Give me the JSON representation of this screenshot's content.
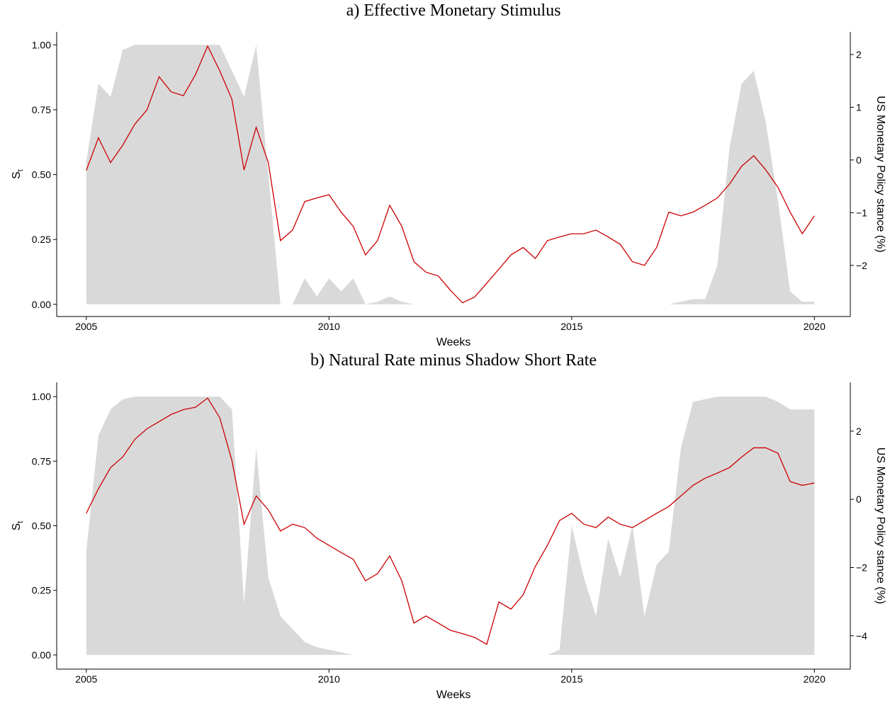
{
  "chart_data": [
    {
      "type": "line",
      "title": "a) Effective Monetary Stimulus",
      "x_label": "Weeks",
      "y_label": "S",
      "y_label_sub": "t",
      "y2_label": "US Monetary Policy stance (%)",
      "x": [
        2005,
        2005.25,
        2005.5,
        2005.75,
        2006,
        2006.25,
        2006.5,
        2006.75,
        2007,
        2007.25,
        2007.5,
        2007.75,
        2008,
        2008.25,
        2008.5,
        2008.75,
        2009,
        2009.25,
        2009.5,
        2009.75,
        2010,
        2010.25,
        2010.5,
        2010.75,
        2011,
        2011.25,
        2011.5,
        2011.75,
        2012,
        2012.25,
        2012.5,
        2012.75,
        2013,
        2013.25,
        2013.5,
        2013.75,
        2014,
        2014.25,
        2014.5,
        2014.75,
        2015,
        2015.25,
        2015.5,
        2015.75,
        2016,
        2016.25,
        2016.5,
        2016.75,
        2017,
        2017.25,
        2017.5,
        2017.75,
        2018,
        2018.25,
        2018.5,
        2018.75,
        2019,
        2019.25,
        2019.5,
        2019.75,
        2020
      ],
      "series": [
        {
          "style": "area",
          "color": "#d9d9d9",
          "values": [
            0.55,
            0.85,
            0.8,
            0.98,
            1,
            1,
            1,
            1,
            1,
            1,
            1,
            1,
            0.9,
            0.8,
            1.0,
            0.5,
            0,
            0,
            0.1,
            0.03,
            0.1,
            0.05,
            0.1,
            0,
            0.01,
            0.03,
            0.01,
            0,
            0,
            0,
            0,
            0,
            0,
            0,
            0,
            0,
            0,
            0,
            0,
            0,
            0,
            0,
            0,
            0,
            0,
            0,
            0,
            0,
            0,
            0.01,
            0.02,
            0.02,
            0.15,
            0.6,
            0.85,
            0.9,
            0.7,
            0.4,
            0.05,
            0.01,
            0.01
          ]
        },
        {
          "style": "line",
          "axis": "y2",
          "color": "#cc0000",
          "values": [
            -0.2,
            0.42,
            -0.05,
            0.28,
            0.68,
            0.95,
            1.58,
            1.29,
            1.22,
            1.62,
            2.16,
            1.69,
            1.15,
            -0.19,
            0.62,
            -0.05,
            -1.53,
            -1.33,
            -0.79,
            -0.72,
            -0.66,
            -0.99,
            -1.26,
            -1.8,
            -1.53,
            -0.86,
            -1.26,
            -1.93,
            -2.13,
            -2.2,
            -2.47,
            -2.71,
            -2.6,
            -2.34,
            -2.07,
            -1.8,
            -1.66,
            -1.87,
            -1.53,
            -1.46,
            -1.4,
            -1.4,
            -1.33,
            -1.46,
            -1.6,
            -1.93,
            -2.0,
            -1.66,
            -0.99,
            -1.06,
            -0.99,
            -0.86,
            -0.72,
            -0.46,
            -0.12,
            0.08,
            -0.19,
            -0.52,
            -0.99,
            -1.4,
            -1.06
          ]
        }
      ],
      "xlim": [
        2004.39,
        2020.74
      ],
      "xticks": [
        2005,
        2010,
        2015,
        2020
      ],
      "ylim": [
        -0.047,
        1.05
      ],
      "yticks": [
        {
          "value": 0,
          "label": "0.00"
        },
        {
          "value": 0.25,
          "label": "0.25"
        },
        {
          "value": 0.5,
          "label": "0.50"
        },
        {
          "value": 0.75,
          "label": "0.75"
        },
        {
          "value": 1,
          "label": "1.00"
        }
      ],
      "y2lim": [
        -2.97,
        2.43
      ],
      "y2ticks": [
        {
          "value": -2,
          "label": "−2"
        },
        {
          "value": -1,
          "label": "−1"
        },
        0,
        1,
        2
      ]
    },
    {
      "type": "line",
      "title": "b) Natural Rate minus Shadow Short Rate",
      "x_label": "Weeks",
      "y_label": "S",
      "y_label_sub": "t",
      "y2_label": "US Monetary Policy stance (%)",
      "x": [
        2005,
        2005.25,
        2005.5,
        2005.75,
        2006,
        2006.25,
        2006.5,
        2006.75,
        2007,
        2007.25,
        2007.5,
        2007.75,
        2008,
        2008.25,
        2008.5,
        2008.75,
        2009,
        2009.25,
        2009.5,
        2009.75,
        2010,
        2010.25,
        2010.5,
        2010.75,
        2011,
        2011.25,
        2011.5,
        2011.75,
        2012,
        2012.25,
        2012.5,
        2012.75,
        2013,
        2013.25,
        2013.5,
        2013.75,
        2014,
        2014.25,
        2014.5,
        2014.75,
        2015,
        2015.25,
        2015.5,
        2015.75,
        2016,
        2016.25,
        2016.5,
        2016.75,
        2017,
        2017.25,
        2017.5,
        2017.75,
        2018,
        2018.25,
        2018.5,
        2018.75,
        2019,
        2019.25,
        2019.5,
        2019.75,
        2020
      ],
      "series": [
        {
          "style": "area",
          "color": "#d9d9d9",
          "values": [
            0.4,
            0.85,
            0.95,
            0.99,
            1,
            1,
            1,
            1,
            1,
            1,
            1,
            1,
            0.95,
            0.2,
            0.8,
            0.3,
            0.15,
            0.1,
            0.05,
            0.03,
            0.02,
            0.01,
            0,
            0,
            0,
            0,
            0,
            0,
            0,
            0,
            0,
            0,
            0,
            0,
            0,
            0,
            0,
            0,
            0,
            0.02,
            0.5,
            0.3,
            0.15,
            0.45,
            0.3,
            0.5,
            0.15,
            0.35,
            0.4,
            0.8,
            0.98,
            0.99,
            1,
            1,
            1,
            1,
            1,
            0.98,
            0.95,
            0.95,
            0.95
          ]
        },
        {
          "style": "line",
          "axis": "y2",
          "color": "#cc0000",
          "values": [
            -0.41,
            0.31,
            0.93,
            1.24,
            1.76,
            2.07,
            2.28,
            2.49,
            2.63,
            2.7,
            2.97,
            2.39,
            1.14,
            -0.73,
            0.1,
            -0.31,
            -0.93,
            -0.73,
            -0.83,
            -1.14,
            -1.35,
            -1.56,
            -1.76,
            -2.39,
            -2.18,
            -1.66,
            -2.39,
            -3.63,
            -3.42,
            -3.63,
            -3.84,
            -3.94,
            -4.05,
            -4.25,
            -3.01,
            -3.22,
            -2.8,
            -1.97,
            -1.35,
            -0.62,
            -0.41,
            -0.73,
            -0.83,
            -0.52,
            -0.73,
            -0.83,
            -0.62,
            -0.41,
            -0.21,
            0.1,
            0.41,
            0.62,
            0.77,
            0.93,
            1.24,
            1.51,
            1.51,
            1.35,
            0.52,
            0.41,
            0.48
          ]
        }
      ],
      "xlim": [
        2004.39,
        2020.74
      ],
      "xticks": [
        2005,
        2010,
        2015,
        2020
      ],
      "ylim": [
        -0.055,
        1.055
      ],
      "yticks": [
        {
          "value": 0,
          "label": "0.00"
        },
        {
          "value": 0.25,
          "label": "0.25"
        },
        {
          "value": 0.5,
          "label": "0.50"
        },
        {
          "value": 0.75,
          "label": "0.75"
        },
        {
          "value": 1,
          "label": "1.00"
        }
      ],
      "y2lim": [
        -4.98,
        3.43
      ],
      "y2ticks": [
        {
          "value": -4,
          "label": "−4"
        },
        {
          "value": -2,
          "label": "−2"
        },
        0,
        2
      ]
    }
  ]
}
